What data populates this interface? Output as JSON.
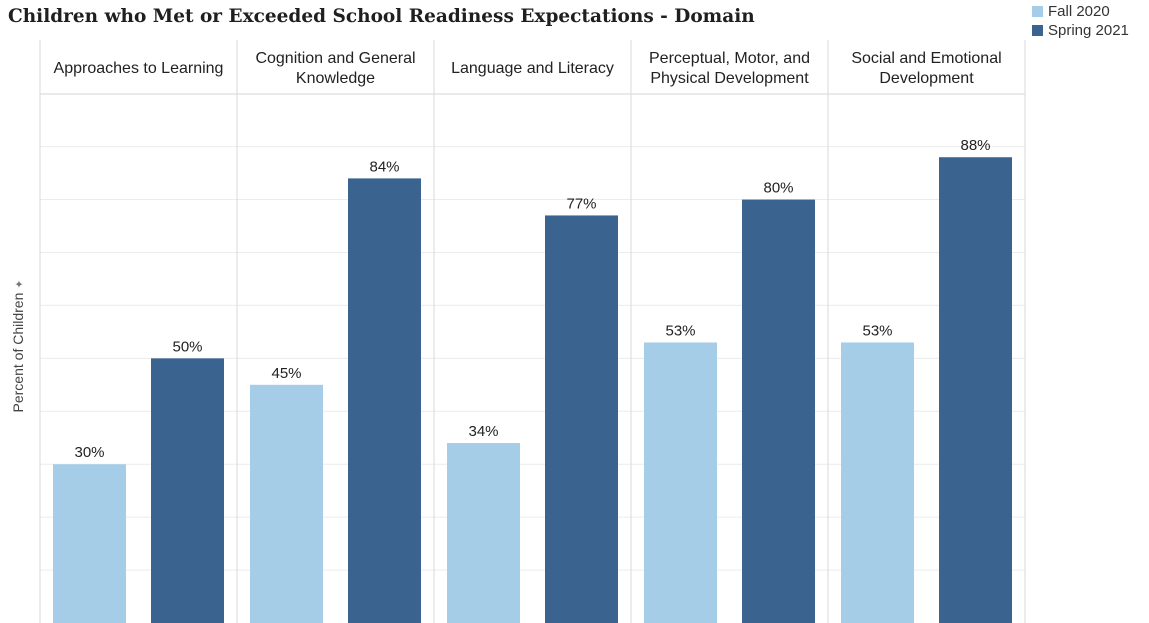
{
  "chart_data": {
    "type": "bar",
    "title": "Children who Met or Exceeded School Readiness Expectations - Domain",
    "ylabel": "Percent of Children",
    "ylim": [
      0,
      100
    ],
    "grid": true,
    "legend_position": "top-right",
    "categories": [
      [
        "Approaches to Learning"
      ],
      [
        "Cognition and General",
        "Knowledge"
      ],
      [
        "Language and Literacy"
      ],
      [
        "Perceptual, Motor, and",
        "Physical Development"
      ],
      [
        "Social and Emotional",
        "Development"
      ]
    ],
    "series": [
      {
        "name": "Fall 2020",
        "color": "#a6cde8",
        "values": [
          30,
          45,
          34,
          53,
          53
        ],
        "labels": [
          "30%",
          "45%",
          "34%",
          "53%",
          "53%"
        ]
      },
      {
        "name": "Spring 2021",
        "color": "#3a648f",
        "values": [
          50,
          84,
          77,
          80,
          88
        ],
        "labels": [
          "50%",
          "84%",
          "77%",
          "80%",
          "88%"
        ]
      }
    ]
  }
}
